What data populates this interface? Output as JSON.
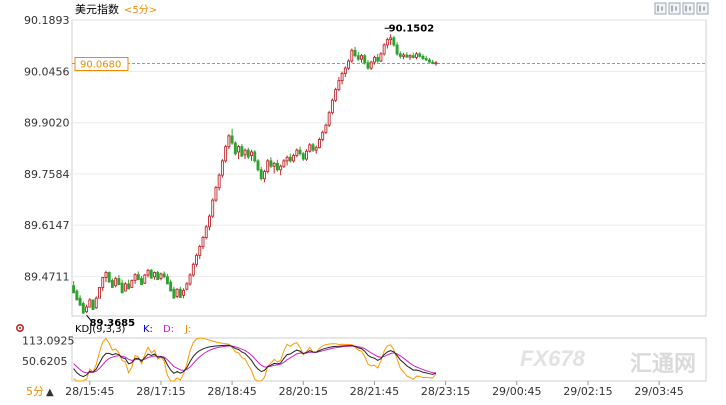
{
  "header": {
    "title": "美元指数",
    "period": "<5分>",
    "icon_buttons": [
      "kline-icon",
      "line-icon",
      "export-icon",
      "settings-icon"
    ]
  },
  "chart_data": [
    {
      "type": "candlestick",
      "ylim": [
        89.36,
        90.19
      ],
      "y_ticks": [
        "90.1893",
        "90.0456",
        "89.9020",
        "89.7584",
        "89.6147",
        "89.4711"
      ],
      "current_value": "90.0680",
      "annotations": {
        "high": "90.1502",
        "low": "89.3685"
      },
      "up_color": "#c0272d",
      "down_color": "#2ea22e",
      "current_line_color": "#f08c00",
      "candles": [
        [
          89.445,
          89.458,
          89.43,
          89.425
        ],
        [
          89.43,
          89.435,
          89.41,
          89.405
        ],
        [
          89.41,
          89.418,
          89.395,
          89.39
        ],
        [
          89.395,
          89.4,
          89.372,
          89.368
        ],
        [
          89.372,
          89.392,
          89.368,
          89.385
        ],
        [
          89.385,
          89.41,
          89.385,
          89.405
        ],
        [
          89.405,
          89.405,
          89.383,
          89.378
        ],
        [
          89.383,
          89.415,
          89.38,
          89.41
        ],
        [
          89.41,
          89.44,
          89.41,
          89.44
        ],
        [
          89.44,
          89.47,
          89.43,
          89.468
        ],
        [
          89.468,
          89.487,
          89.455,
          89.482
        ],
        [
          89.482,
          89.485,
          89.46,
          89.455
        ],
        [
          89.46,
          89.465,
          89.445,
          89.44
        ],
        [
          89.445,
          89.47,
          89.44,
          89.465
        ],
        [
          89.465,
          89.475,
          89.452,
          89.448
        ],
        [
          89.452,
          89.462,
          89.43,
          89.425
        ],
        [
          89.43,
          89.455,
          89.43,
          89.45
        ],
        [
          89.45,
          89.462,
          89.44,
          89.436
        ],
        [
          89.44,
          89.462,
          89.44,
          89.46
        ],
        [
          89.46,
          89.48,
          89.45,
          89.476
        ],
        [
          89.476,
          89.485,
          89.465,
          89.462
        ],
        [
          89.465,
          89.472,
          89.452,
          89.448
        ],
        [
          89.452,
          89.478,
          89.45,
          89.475
        ],
        [
          89.475,
          89.492,
          89.468,
          89.488
        ],
        [
          89.488,
          89.492,
          89.47,
          89.466
        ],
        [
          89.47,
          89.485,
          89.462,
          89.482
        ],
        [
          89.482,
          89.487,
          89.465,
          89.462
        ],
        [
          89.465,
          89.482,
          89.46,
          89.478
        ],
        [
          89.478,
          89.485,
          89.466,
          89.47
        ],
        [
          89.47,
          89.478,
          89.455,
          89.45
        ],
        [
          89.455,
          89.462,
          89.435,
          89.43
        ],
        [
          89.435,
          89.442,
          89.415,
          89.41
        ],
        [
          89.415,
          89.438,
          89.41,
          89.435
        ],
        [
          89.435,
          89.442,
          89.418,
          89.412
        ],
        [
          89.418,
          89.438,
          89.41,
          89.432
        ],
        [
          89.435,
          89.455,
          89.432,
          89.45
        ],
        [
          89.45,
          89.48,
          89.445,
          89.475
        ],
        [
          89.475,
          89.51,
          89.47,
          89.505
        ],
        [
          89.505,
          89.535,
          89.498,
          89.53
        ],
        [
          89.53,
          89.56,
          89.52,
          89.555
        ],
        [
          89.555,
          89.585,
          89.548,
          89.58
        ],
        [
          89.58,
          89.615,
          89.575,
          89.61
        ],
        [
          89.61,
          89.645,
          89.6,
          89.64
        ],
        [
          89.64,
          89.69,
          89.635,
          89.685
        ],
        [
          89.685,
          89.725,
          89.68,
          89.72
        ],
        [
          89.72,
          89.76,
          89.712,
          89.755
        ],
        [
          89.755,
          89.8,
          89.748,
          89.795
        ],
        [
          89.795,
          89.84,
          89.79,
          89.835
        ],
        [
          89.835,
          89.87,
          89.828,
          89.865
        ],
        [
          89.865,
          89.885,
          89.84,
          89.845
        ],
        [
          89.845,
          89.85,
          89.81,
          89.815
        ],
        [
          89.82,
          89.84,
          89.8,
          89.835
        ],
        [
          89.835,
          89.842,
          89.81,
          89.808
        ],
        [
          89.812,
          89.83,
          89.8,
          89.825
        ],
        [
          89.825,
          89.832,
          89.8,
          89.806
        ],
        [
          89.81,
          89.826,
          89.795,
          89.82
        ],
        [
          89.82,
          89.825,
          89.79,
          89.795
        ],
        [
          89.795,
          89.8,
          89.765,
          89.77
        ],
        [
          89.77,
          89.778,
          89.74,
          89.745
        ],
        [
          89.745,
          89.77,
          89.735,
          89.765
        ],
        [
          89.765,
          89.8,
          89.76,
          89.795
        ],
        [
          89.795,
          89.805,
          89.775,
          89.78
        ],
        [
          89.78,
          89.792,
          89.76,
          89.788
        ],
        [
          89.788,
          89.798,
          89.765,
          89.77
        ],
        [
          89.77,
          89.785,
          89.755,
          89.78
        ],
        [
          89.78,
          89.8,
          89.775,
          89.795
        ],
        [
          89.795,
          89.81,
          89.782,
          89.805
        ],
        [
          89.805,
          89.815,
          89.79,
          89.795
        ],
        [
          89.795,
          89.815,
          89.79,
          89.81
        ],
        [
          89.81,
          89.83,
          89.805,
          89.825
        ],
        [
          89.825,
          89.835,
          89.81,
          89.815
        ],
        [
          89.815,
          89.82,
          89.795,
          89.8
        ],
        [
          89.8,
          89.828,
          89.795,
          89.822
        ],
        [
          89.822,
          89.845,
          89.818,
          89.84
        ],
        [
          89.84,
          89.845,
          89.82,
          89.825
        ],
        [
          89.825,
          89.838,
          89.815,
          89.832
        ],
        [
          89.832,
          89.86,
          89.83,
          89.855
        ],
        [
          89.855,
          89.88,
          89.85,
          89.875
        ],
        [
          89.875,
          89.9,
          89.87,
          89.895
        ],
        [
          89.895,
          89.935,
          89.89,
          89.93
        ],
        [
          89.93,
          89.97,
          89.925,
          89.965
        ],
        [
          89.965,
          90.0,
          89.96,
          89.995
        ],
        [
          89.995,
          90.03,
          89.99,
          90.02
        ],
        [
          90.02,
          90.045,
          90.01,
          90.04
        ],
        [
          90.04,
          90.06,
          90.03,
          90.055
        ],
        [
          90.055,
          90.08,
          90.05,
          90.075
        ],
        [
          90.075,
          90.11,
          90.07,
          90.105
        ],
        [
          90.105,
          90.115,
          90.085,
          90.09
        ],
        [
          90.09,
          90.1,
          90.075,
          90.08
        ],
        [
          90.08,
          90.095,
          90.07,
          90.09
        ],
        [
          90.09,
          90.095,
          90.065,
          90.07
        ],
        [
          90.07,
          90.078,
          90.05,
          90.055
        ],
        [
          90.055,
          90.075,
          90.05,
          90.072
        ],
        [
          90.072,
          90.09,
          90.065,
          90.085
        ],
        [
          90.085,
          90.095,
          90.07,
          90.075
        ],
        [
          90.075,
          90.1,
          90.072,
          90.095
        ],
        [
          90.095,
          90.125,
          90.09,
          90.12
        ],
        [
          90.12,
          90.14,
          90.11,
          90.135
        ],
        [
          90.135,
          90.15,
          90.12,
          90.14
        ],
        [
          90.14,
          90.145,
          90.115,
          90.12
        ],
        [
          90.12,
          90.128,
          90.09,
          90.095
        ],
        [
          90.095,
          90.102,
          90.082,
          90.088
        ],
        [
          90.088,
          90.098,
          90.08,
          90.092
        ],
        [
          90.092,
          90.1,
          90.084,
          90.086
        ],
        [
          90.086,
          90.094,
          90.078,
          90.09
        ],
        [
          90.09,
          90.098,
          90.082,
          90.085
        ],
        [
          90.085,
          90.1,
          90.08,
          90.095
        ],
        [
          90.095,
          90.1,
          90.085,
          90.088
        ],
        [
          90.088,
          90.094,
          90.078,
          90.082
        ],
        [
          90.082,
          90.09,
          90.075,
          90.078
        ],
        [
          90.078,
          90.084,
          90.07,
          90.072
        ],
        [
          90.072,
          90.078,
          90.066,
          90.068
        ],
        [
          90.068,
          90.075,
          90.062,
          90.07
        ]
      ]
    },
    {
      "type": "line",
      "indicator": "KDJ(9,3,3)",
      "series_labels": [
        "K:",
        "D:",
        "J:"
      ],
      "series_colors": [
        "#222222",
        "#cc22cc",
        "#ff9900"
      ],
      "y_ticks": [
        "113.0925",
        "50.6205"
      ],
      "ylim": [
        -10,
        120
      ],
      "x_ticks": [
        "28/15:45",
        "28/17:15",
        "28/18:45",
        "28/20:15",
        "28/21:45",
        "28/23:15",
        "29/00:45",
        "29/02:15",
        "29/03:45"
      ],
      "x_tick_index": [
        5,
        27,
        49,
        71,
        93,
        115,
        137,
        159,
        181
      ],
      "x_count": 196,
      "period_label": "5分",
      "arrow_label": "▲"
    }
  ],
  "watermark": {
    "logo": "FX678",
    "text": "汇通网"
  }
}
